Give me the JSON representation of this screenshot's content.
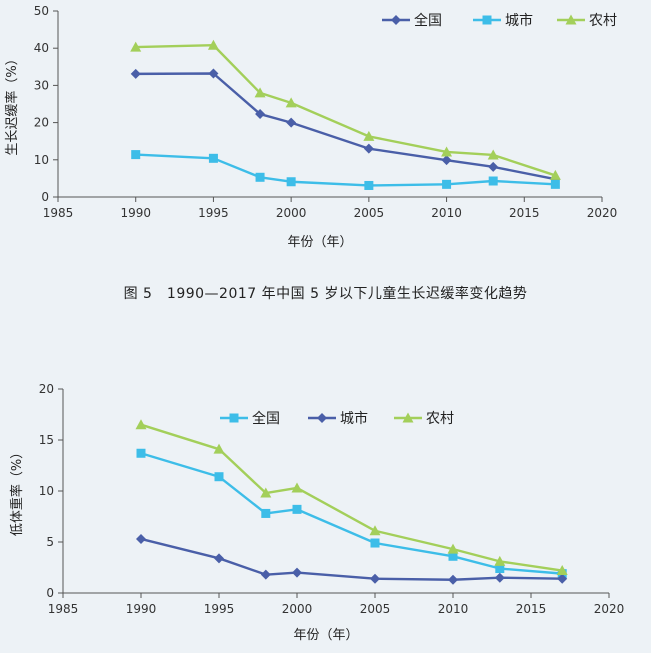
{
  "colors": {
    "national": "#4a5fa8",
    "urban": "#3dbde8",
    "rural": "#a3cf5a"
  },
  "caption": "图 5　1990—2017 年中国 5 岁以下儿童生长迟缓率变化趋势",
  "chart_data": [
    {
      "type": "line",
      "xlabel": "年份（年）",
      "ylabel": "生长迟缓率（%）",
      "xlim": [
        1985,
        2020
      ],
      "ylim": [
        0,
        50
      ],
      "xticks": [
        1985,
        1990,
        1995,
        2000,
        2005,
        2010,
        2015,
        2020
      ],
      "yticks": [
        0,
        10,
        20,
        30,
        40,
        50
      ],
      "x": [
        1990,
        1995,
        1998,
        2000,
        2005,
        2010,
        2013,
        2017
      ],
      "series": [
        {
          "name": "全国",
          "marker": "diamond",
          "color": "#4a5fa8",
          "values": [
            33.1,
            33.2,
            22.3,
            20.0,
            13.0,
            9.9,
            8.1,
            4.8
          ]
        },
        {
          "name": "城市",
          "marker": "square",
          "color": "#3dbde8",
          "values": [
            11.4,
            10.4,
            5.3,
            4.1,
            3.1,
            3.4,
            4.3,
            3.4
          ]
        },
        {
          "name": "农村",
          "marker": "triangle",
          "color": "#a3cf5a",
          "values": [
            40.3,
            40.8,
            28.0,
            25.3,
            16.3,
            12.1,
            11.3,
            5.8
          ]
        }
      ],
      "legend_position": "top-right",
      "grid": false
    },
    {
      "type": "line",
      "xlabel": "年份（年）",
      "ylabel": "低体重率（%）",
      "xlim": [
        1985,
        2020
      ],
      "ylim": [
        0,
        20
      ],
      "xticks": [
        1985,
        1990,
        1995,
        2000,
        2005,
        2010,
        2015,
        2020
      ],
      "yticks": [
        0,
        5,
        10,
        15,
        20
      ],
      "x": [
        1990,
        1995,
        1998,
        2000,
        2005,
        2010,
        2013,
        2017
      ],
      "series": [
        {
          "name": "全国",
          "marker": "square",
          "color": "#3dbde8",
          "values": [
            13.7,
            11.4,
            7.8,
            8.2,
            4.9,
            3.6,
            2.4,
            1.9
          ]
        },
        {
          "name": "城市",
          "marker": "diamond",
          "color": "#4a5fa8",
          "values": [
            5.3,
            3.4,
            1.8,
            2.0,
            1.4,
            1.3,
            1.5,
            1.4
          ]
        },
        {
          "name": "农村",
          "marker": "triangle",
          "color": "#a3cf5a",
          "values": [
            16.5,
            14.1,
            9.8,
            10.3,
            6.1,
            4.3,
            3.1,
            2.2
          ]
        }
      ],
      "legend_position": "top-center",
      "grid": false
    }
  ]
}
